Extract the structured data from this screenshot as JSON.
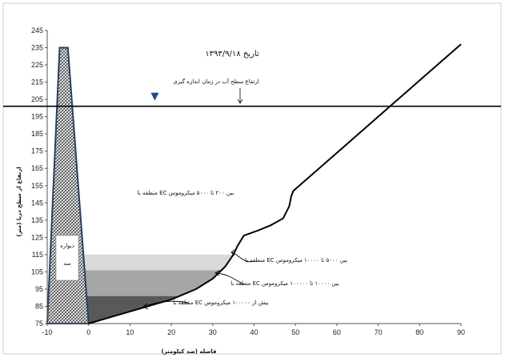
{
  "chart_data": {
    "type": "line",
    "title": "تاریخ ۱۳۹۳/۹/۱۸",
    "xlabel": "فاصله (صد کیلومتر)",
    "ylabel": "ارتفاع از سطح دریا (متر)",
    "xlim": [
      -10,
      90
    ],
    "ylim": [
      75,
      245
    ],
    "x_ticks": [
      "-10",
      "0",
      "10",
      "20",
      "30",
      "40",
      "50",
      "60",
      "70",
      "80",
      "90"
    ],
    "y_ticks": [
      "75",
      "85",
      "95",
      "105",
      "115",
      "125",
      "135",
      "145",
      "155",
      "165",
      "175",
      "185",
      "195",
      "205",
      "215",
      "225",
      "235",
      "245"
    ],
    "dam": {
      "label_line1": "دیواره",
      "label_line2": "سد",
      "crest_x": [
        -7,
        -5
      ],
      "crest_y": 235,
      "base_x": [
        -10,
        0
      ],
      "base_y": 75
    },
    "water_level": {
      "y": 201,
      "marker_x": 16,
      "label": "ارتفاع سطح آب در زمان اندازه گیری"
    },
    "bed_profile": {
      "x": [
        0,
        10,
        20,
        26,
        30,
        33,
        35,
        36,
        37.5,
        41,
        44,
        47,
        48.5,
        49,
        49.5,
        60,
        70,
        80,
        90
      ],
      "y": [
        75,
        82,
        89,
        95,
        101,
        108,
        115,
        120,
        126,
        129,
        132,
        136,
        143,
        149,
        152,
        174,
        195,
        216,
        237
      ]
    },
    "zones": [
      {
        "label": "منطقه با EC بین ۲۰۰ تا ۵۰۰۰ میکروموس",
        "y_range": [
          115,
          201
        ],
        "color": "#ffffff"
      },
      {
        "label": "منطقه با EC بین ۵۰۰۰ تا ۱۰۰۰۰ میکروموس",
        "y_range": [
          106,
          115
        ],
        "color": "#d9d9d9"
      },
      {
        "label": "منطقه با EC بین ۱۰۰۰۰ تا ۱۰۰۰۰۰ میکروموس",
        "y_range": [
          91,
          106
        ],
        "color": "#a6a6a6"
      },
      {
        "label": "منطقه با EC بیش از ۱۰۰۰۰۰ میکروموس",
        "y_range": [
          75,
          91
        ],
        "color": "#595959"
      }
    ],
    "grid": false,
    "legend": "none"
  }
}
